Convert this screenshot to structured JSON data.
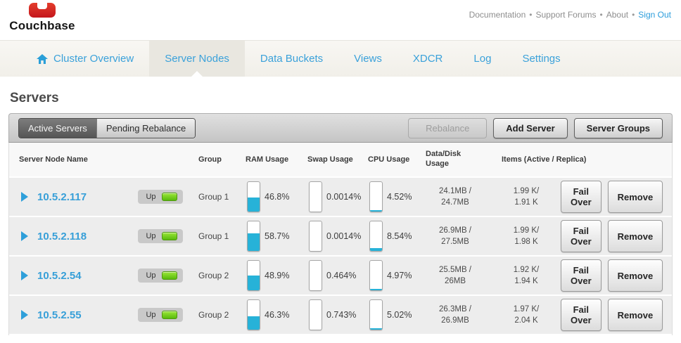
{
  "header": {
    "logo_text": "Couchbase",
    "separator": "•",
    "links": {
      "documentation": "Documentation",
      "support_forums": "Support Forums",
      "about": "About",
      "sign_out": "Sign Out"
    }
  },
  "nav": {
    "tabs": [
      {
        "label": "Cluster Overview"
      },
      {
        "label": "Server Nodes"
      },
      {
        "label": "Data Buckets"
      },
      {
        "label": "Views"
      },
      {
        "label": "XDCR"
      },
      {
        "label": "Log"
      },
      {
        "label": "Settings"
      }
    ],
    "active_tab": "Server Nodes"
  },
  "page": {
    "title": "Servers"
  },
  "toolbar": {
    "active_servers_tab": "Active Servers",
    "pending_rebalance_tab": "Pending Rebalance",
    "rebalance_button": "Rebalance",
    "rebalance_disabled": true,
    "add_server_button": "Add Server",
    "server_groups_button": "Server Groups"
  },
  "table": {
    "columns": {
      "name": "Server Node Name",
      "group": "Group",
      "ram": "RAM Usage",
      "swap": "Swap Usage",
      "cpu": "CPU Usage",
      "data_disk": "Data/Disk Usage",
      "items": "Items (Active / Replica)"
    },
    "actions": {
      "fail_over": "Fail Over",
      "remove": "Remove"
    },
    "rows": [
      {
        "name": "10.5.2.117",
        "status": "Up",
        "group": "Group 1",
        "ram_pct": "46.8%",
        "ram_fill": 46.8,
        "swap_pct": "0.0014%",
        "swap_fill": 0.0014,
        "cpu_pct": "4.52%",
        "cpu_fill": 4.52,
        "data_used": "24.1MB /",
        "data_total": "24.7MB",
        "items_active": "1.99 K/",
        "items_replica": "1.91 K"
      },
      {
        "name": "10.5.2.118",
        "status": "Up",
        "group": "Group 1",
        "ram_pct": "58.7%",
        "ram_fill": 58.7,
        "swap_pct": "0.0014%",
        "swap_fill": 0.0014,
        "cpu_pct": "8.54%",
        "cpu_fill": 8.54,
        "data_used": "26.9MB /",
        "data_total": "27.5MB",
        "items_active": "1.99 K/",
        "items_replica": "1.98 K"
      },
      {
        "name": "10.5.2.54",
        "status": "Up",
        "group": "Group 2",
        "ram_pct": "48.9%",
        "ram_fill": 48.9,
        "swap_pct": "0.464%",
        "swap_fill": 0.464,
        "cpu_pct": "4.97%",
        "cpu_fill": 4.97,
        "data_used": "25.5MB /",
        "data_total": "26MB",
        "items_active": "1.92 K/",
        "items_replica": "1.94 K"
      },
      {
        "name": "10.5.2.55",
        "status": "Up",
        "group": "Group 2",
        "ram_pct": "46.3%",
        "ram_fill": 46.3,
        "swap_pct": "0.743%",
        "swap_fill": 0.743,
        "cpu_pct": "5.02%",
        "cpu_fill": 5.02,
        "data_used": "26.3MB /",
        "data_total": "26.9MB",
        "items_active": "1.97 K/",
        "items_replica": "2.04 K"
      }
    ]
  },
  "colors": {
    "accent_blue": "#379fd8",
    "gauge_fill": "#27b2d8",
    "led_green": "#5cbb0c",
    "signout_blue": "#2b9ddc",
    "logo_red": "#c4161c"
  }
}
